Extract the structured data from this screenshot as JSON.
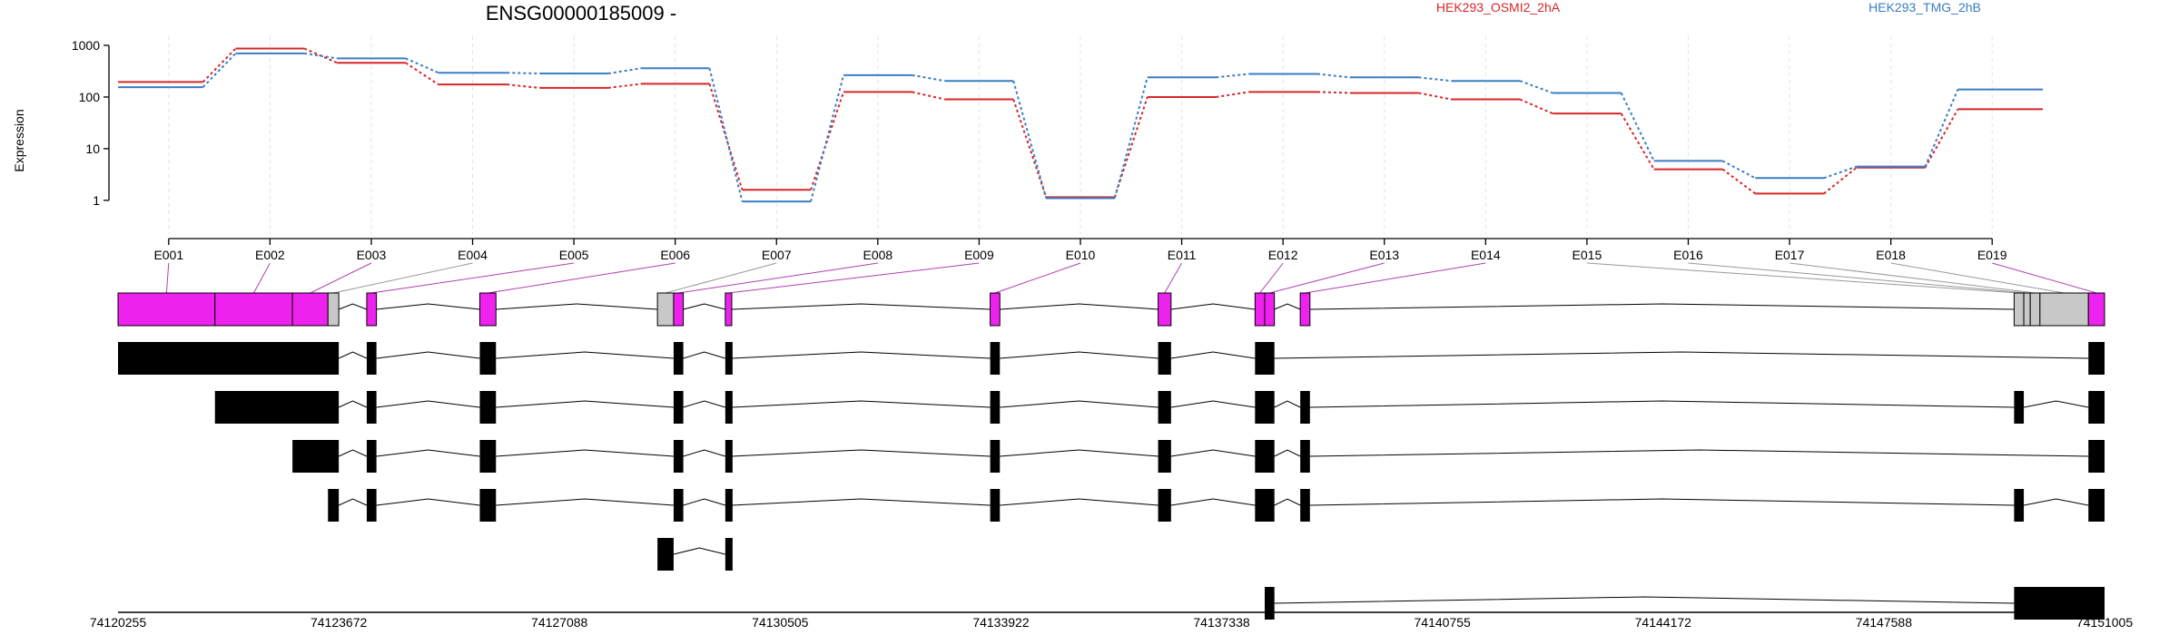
{
  "title": "ENSG00000185009 -",
  "ylabel": "Expression",
  "colors": {
    "series_a": "#d62728",
    "series_b": "#3a7dc4",
    "exon_sig": "#ee22ee",
    "exon_plain": "#c8c8c8",
    "transcript": "#000000"
  },
  "chart_data": {
    "type": "line",
    "scale": "log",
    "ylim": [
      0.5,
      1000
    ],
    "y_ticks": [
      1,
      10,
      100,
      1000
    ],
    "y_tick_labels": [
      "1",
      "10",
      "100",
      "1000"
    ],
    "categories": [
      "E001",
      "E002",
      "E003",
      "E004",
      "E005",
      "E006",
      "E007",
      "E008",
      "E009",
      "E010",
      "E011",
      "E012",
      "E013",
      "E014",
      "E015",
      "E016",
      "E017",
      "E018",
      "E019"
    ],
    "series": [
      {
        "name": "HEK293_OSMI2_2hA",
        "color": "#d62728",
        "values": [
          195,
          870,
          460,
          175,
          150,
          180,
          1.6,
          125,
          90,
          1.15,
          100,
          125,
          120,
          90,
          48,
          4.0,
          1.35,
          4.3,
          58
        ]
      },
      {
        "name": "HEK293_TMG_2hB",
        "color": "#3a7dc4",
        "values": [
          155,
          700,
          560,
          295,
          285,
          360,
          0.95,
          265,
          205,
          1.1,
          240,
          280,
          240,
          205,
          120,
          5.8,
          2.7,
          4.5,
          140
        ]
      }
    ]
  },
  "gene_model": {
    "coord_ticks": [
      "74120255",
      "74123672",
      "74127088",
      "74130505",
      "74133922",
      "74137338",
      "74140755",
      "74144172",
      "74147588",
      "74151005"
    ],
    "exons": [
      {
        "id": "E001",
        "start": 74120255,
        "end": 74121755,
        "sig": true
      },
      {
        "id": "E002",
        "start": 74121755,
        "end": 74122955,
        "sig": true
      },
      {
        "id": "E003",
        "start": 74122955,
        "end": 74123505,
        "sig": true
      },
      {
        "id": "E004",
        "start": 74123505,
        "end": 74123672,
        "sig": false
      },
      {
        "id": "E005",
        "start": 74124105,
        "end": 74124255,
        "sig": true
      },
      {
        "id": "E006",
        "start": 74125855,
        "end": 74126105,
        "sig": true
      },
      {
        "id": "E007",
        "start": 74128605,
        "end": 74128855,
        "sig": false
      },
      {
        "id": "E008",
        "start": 74128855,
        "end": 74129005,
        "sig": true
      },
      {
        "id": "E009",
        "start": 74129655,
        "end": 74129755,
        "sig": true
      },
      {
        "id": "E010",
        "start": 74133755,
        "end": 74133905,
        "sig": true
      },
      {
        "id": "E011",
        "start": 74136355,
        "end": 74136555,
        "sig": true
      },
      {
        "id": "E012",
        "start": 74137855,
        "end": 74138005,
        "sig": true
      },
      {
        "id": "E013",
        "start": 74138005,
        "end": 74138155,
        "sig": true
      },
      {
        "id": "E014",
        "start": 74138555,
        "end": 74138705,
        "sig": true
      },
      {
        "id": "E015",
        "start": 74149605,
        "end": 74149755,
        "sig": false
      },
      {
        "id": "E016",
        "start": 74149755,
        "end": 74149855,
        "sig": false
      },
      {
        "id": "E017",
        "start": 74149855,
        "end": 74150005,
        "sig": false
      },
      {
        "id": "E018",
        "start": 74150005,
        "end": 74150755,
        "sig": false
      },
      {
        "id": "E019",
        "start": 74150755,
        "end": 74151005,
        "sig": true
      }
    ],
    "transcripts": [
      [
        [
          74120255,
          74123672
        ],
        [
          74124105,
          74124255
        ],
        [
          74125855,
          74126105
        ],
        [
          74128855,
          74129005
        ],
        [
          74129655,
          74129755
        ],
        [
          74133755,
          74133905
        ],
        [
          74136355,
          74136555
        ],
        [
          74137855,
          74138155
        ],
        [
          74150755,
          74151005
        ]
      ],
      [
        [
          74121755,
          74123672
        ],
        [
          74124105,
          74124255
        ],
        [
          74125855,
          74126105
        ],
        [
          74128855,
          74129005
        ],
        [
          74129655,
          74129755
        ],
        [
          74133755,
          74133905
        ],
        [
          74136355,
          74136555
        ],
        [
          74137855,
          74138155
        ],
        [
          74138555,
          74138705
        ],
        [
          74149605,
          74149755
        ],
        [
          74150755,
          74151005
        ]
      ],
      [
        [
          74122955,
          74123672
        ],
        [
          74124105,
          74124255
        ],
        [
          74125855,
          74126105
        ],
        [
          74128855,
          74129005
        ],
        [
          74129655,
          74129755
        ],
        [
          74133755,
          74133905
        ],
        [
          74136355,
          74136555
        ],
        [
          74137855,
          74138155
        ],
        [
          74138555,
          74138705
        ],
        [
          74150755,
          74151005
        ]
      ],
      [
        [
          74123505,
          74123672
        ],
        [
          74124105,
          74124255
        ],
        [
          74125855,
          74126105
        ],
        [
          74128855,
          74129005
        ],
        [
          74129655,
          74129755
        ],
        [
          74133755,
          74133905
        ],
        [
          74136355,
          74136555
        ],
        [
          74137855,
          74138155
        ],
        [
          74138555,
          74138705
        ],
        [
          74149605,
          74149755
        ],
        [
          74150755,
          74151005
        ]
      ],
      [
        [
          74128605,
          74128855
        ],
        [
          74129655,
          74129755
        ]
      ],
      [
        [
          74138005,
          74138155
        ],
        [
          74149605,
          74151005
        ]
      ]
    ]
  }
}
